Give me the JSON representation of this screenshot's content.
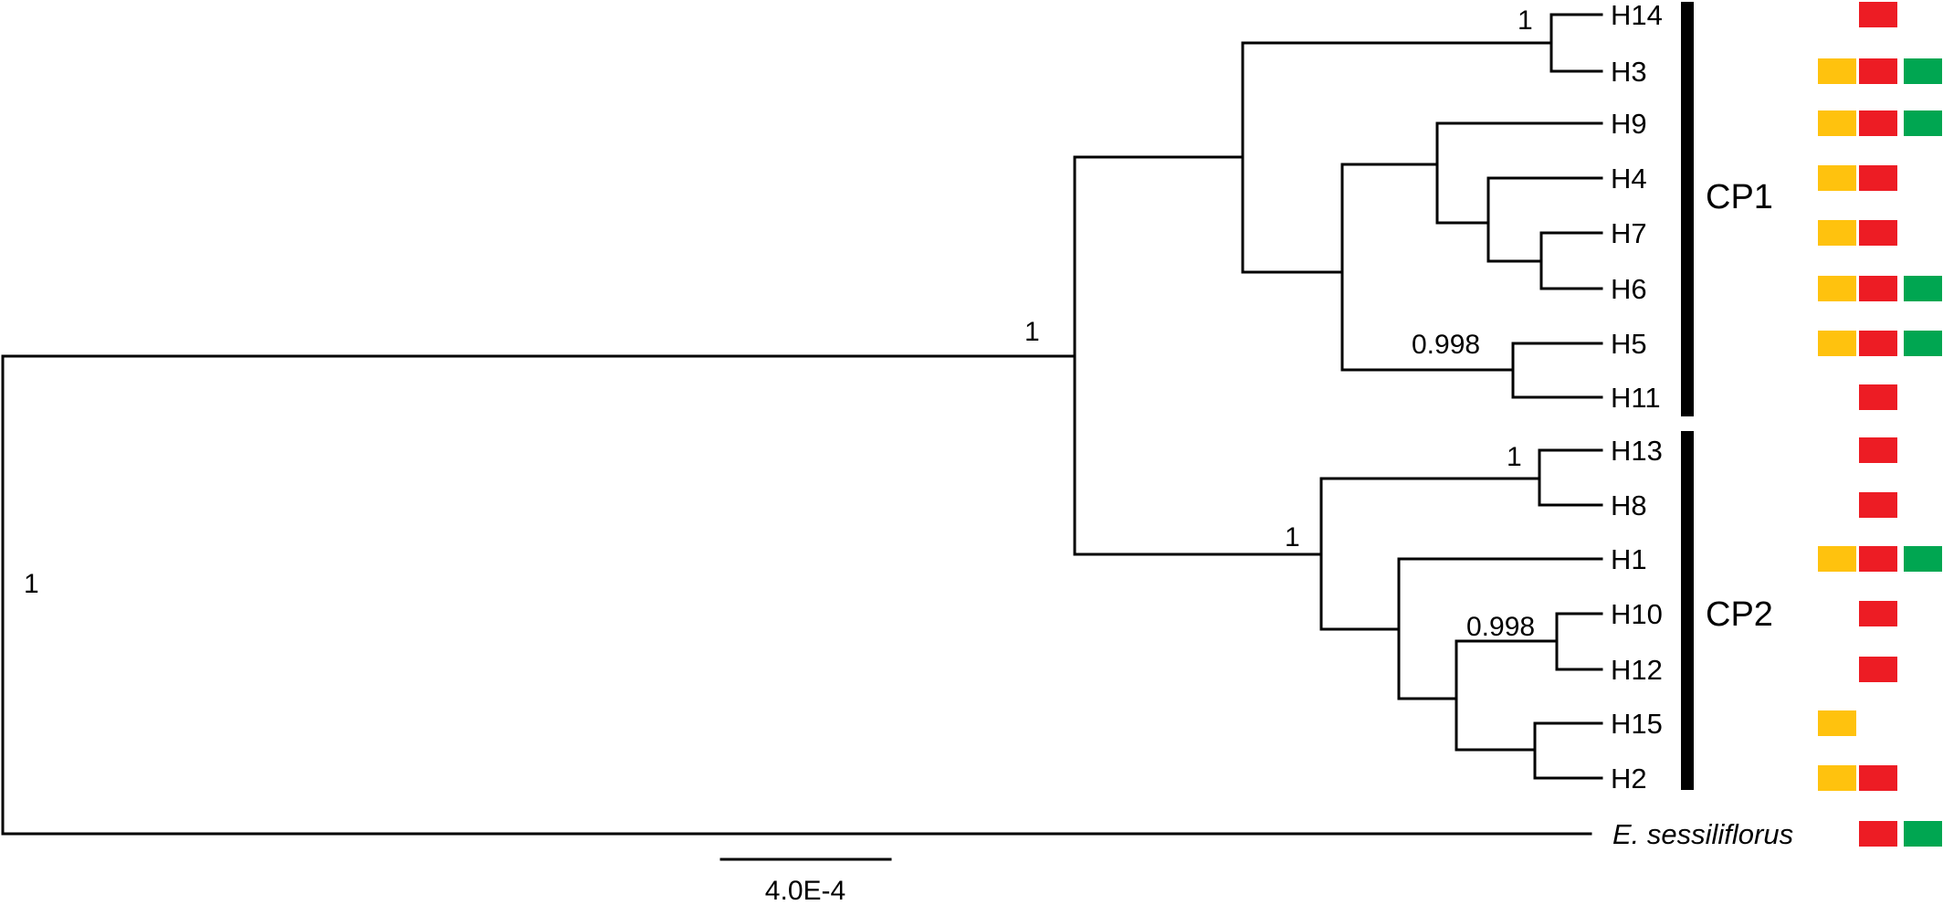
{
  "colors": {
    "yellow": "#FFC20E",
    "red": "#ED1C24",
    "green": "#00A651",
    "line": "#000000"
  },
  "tips": [
    {
      "label": "H14",
      "markers": [
        "red"
      ]
    },
    {
      "label": "H3",
      "markers": [
        "yellow",
        "red",
        "green"
      ]
    },
    {
      "label": "H9",
      "markers": [
        "yellow",
        "red",
        "green"
      ]
    },
    {
      "label": "H4",
      "markers": [
        "yellow",
        "red"
      ]
    },
    {
      "label": "H7",
      "markers": [
        "yellow",
        "red"
      ]
    },
    {
      "label": "H6",
      "markers": [
        "yellow",
        "red",
        "green"
      ]
    },
    {
      "label": "H5",
      "markers": [
        "yellow",
        "red",
        "green"
      ]
    },
    {
      "label": "H11",
      "markers": [
        "red"
      ]
    },
    {
      "label": "H13",
      "markers": [
        "red"
      ]
    },
    {
      "label": "H8",
      "markers": [
        "red"
      ]
    },
    {
      "label": "H1",
      "markers": [
        "yellow",
        "red",
        "green"
      ]
    },
    {
      "label": "H10",
      "markers": [
        "red"
      ]
    },
    {
      "label": "H12",
      "markers": [
        "red"
      ]
    },
    {
      "label": "H15",
      "markers": [
        "yellow"
      ]
    },
    {
      "label": "H2",
      "markers": [
        "yellow",
        "red"
      ]
    },
    {
      "label": "E. sessiliflorus",
      "markers": [
        "red",
        "green"
      ]
    }
  ],
  "support_values": {
    "root": "1",
    "ingroup": "1",
    "h14_h3": "1",
    "h5_h11": "0.998",
    "cp2": "1",
    "h13_h8": "1",
    "h10_h12": "0.998"
  },
  "clades": {
    "cp1": "CP1",
    "cp2": "CP2"
  },
  "scale_bar": {
    "label": "4.0E-4"
  }
}
